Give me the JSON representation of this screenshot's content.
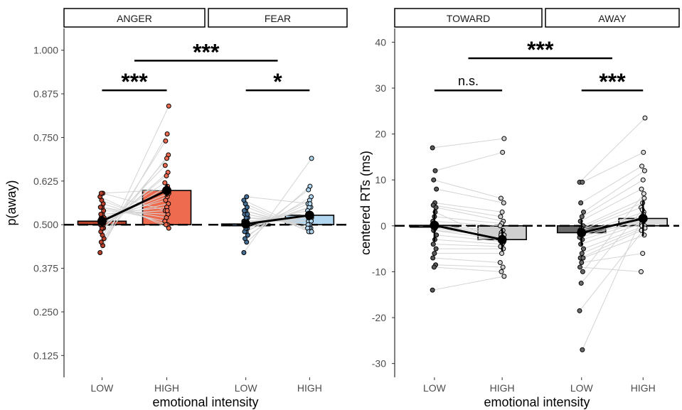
{
  "chart_data": [
    {
      "type": "bar",
      "panel": "left",
      "ylabel": "p(away)",
      "xlabel": "emotional intensity",
      "ylim": [
        0.0625,
        1.0625
      ],
      "yticks": [
        "0.125",
        "0.250",
        "0.375",
        "0.500",
        "0.625",
        "0.750",
        "0.875",
        "1.000"
      ],
      "baseline": 0.5,
      "facets": [
        {
          "label": "ANGER",
          "categories": [
            "LOW",
            "HIGH"
          ],
          "values": [
            0.51,
            0.598
          ],
          "errors": [
            0.015,
            0.018
          ],
          "colors": [
            "#b8422c",
            "#ee6b4f"
          ],
          "points": [
            [
              0.42,
              0.44,
              0.45,
              0.46,
              0.47,
              0.48,
              0.49,
              0.49,
              0.5,
              0.5,
              0.5,
              0.51,
              0.51,
              0.52,
              0.52,
              0.53,
              0.53,
              0.54,
              0.55,
              0.55,
              0.56,
              0.57,
              0.58,
              0.59,
              0.59
            ],
            [
              0.84,
              0.76,
              0.74,
              0.7,
              0.69,
              0.67,
              0.65,
              0.64,
              0.62,
              0.61,
              0.6,
              0.59,
              0.58,
              0.57,
              0.56,
              0.55,
              0.54,
              0.53,
              0.52,
              0.51,
              0.5,
              0.5,
              0.49,
              0.54,
              0.6
            ]
          ]
        },
        {
          "label": "FEAR",
          "categories": [
            "LOW",
            "HIGH"
          ],
          "values": [
            0.502,
            0.527
          ],
          "errors": [
            0.012,
            0.012
          ],
          "colors": [
            "#466f96",
            "#b1d6f0"
          ],
          "points": [
            [
              0.42,
              0.45,
              0.46,
              0.47,
              0.48,
              0.48,
              0.49,
              0.49,
              0.5,
              0.5,
              0.5,
              0.51,
              0.51,
              0.51,
              0.52,
              0.52,
              0.53,
              0.53,
              0.54,
              0.54,
              0.55,
              0.56,
              0.57,
              0.58,
              0.5
            ],
            [
              0.69,
              0.61,
              0.6,
              0.58,
              0.57,
              0.56,
              0.55,
              0.55,
              0.54,
              0.53,
              0.53,
              0.52,
              0.52,
              0.51,
              0.51,
              0.5,
              0.5,
              0.49,
              0.49,
              0.49,
              0.48,
              0.48,
              0.48,
              0.56,
              0.52
            ]
          ]
        }
      ],
      "significance": [
        {
          "text": "***",
          "from": [
            0,
            0
          ],
          "to": [
            0,
            1
          ],
          "y": 0.885
        },
        {
          "text": "*",
          "from": [
            1,
            0
          ],
          "to": [
            1,
            1
          ],
          "y": 0.885
        },
        {
          "text": "***",
          "from": [
            0,
            0.5
          ],
          "to": [
            1,
            0.5
          ],
          "y": 0.97
        }
      ]
    },
    {
      "type": "bar",
      "panel": "right",
      "ylabel": "centered RTs (ms)",
      "xlabel": "emotional intensity",
      "ylim": [
        -33,
        43
      ],
      "yticks": [
        "-30",
        "-20",
        "-10",
        "0",
        "10",
        "20",
        "30",
        "40"
      ],
      "baseline": 0,
      "facets": [
        {
          "label": "TOWARD",
          "categories": [
            "LOW",
            "HIGH"
          ],
          "values": [
            0.1,
            -3.0
          ],
          "errors": [
            3.5,
            2.5
          ],
          "colors": [
            "#5a5a5a",
            "#cfcfcf"
          ],
          "points": [
            [
              17,
              12,
              10,
              8,
              5,
              4.5,
              4,
              2,
              1,
              0,
              0,
              0,
              -0.5,
              -1,
              -2,
              -3,
              -4,
              -5,
              -6,
              -7,
              -8.5,
              -9,
              -14,
              3,
              -1
            ],
            [
              19,
              16,
              6,
              5,
              3,
              2,
              1,
              0.5,
              0,
              -1,
              -1.5,
              -2,
              -2.5,
              -3,
              -3.5,
              -4,
              -4.5,
              -5,
              -6,
              -8,
              -9,
              -10,
              -11,
              -3.8,
              -2
            ]
          ]
        },
        {
          "label": "AWAY",
          "categories": [
            "LOW",
            "HIGH"
          ],
          "values": [
            -1.5,
            1.6
          ],
          "errors": [
            2.8,
            3.8
          ],
          "colors": [
            "#6b6b6b",
            "#dcdcdc"
          ],
          "points": [
            [
              9.5,
              9.5,
              5,
              3,
              2,
              1,
              0,
              -0.5,
              -1,
              -1.5,
              -2,
              -2.5,
              -3,
              -4,
              -5,
              -6,
              -7,
              -7,
              -8,
              -9,
              -10,
              -12.5,
              -18.5,
              -27,
              -1
            ],
            [
              23.5,
              16,
              13,
              12,
              10,
              8,
              6,
              5,
              4,
              3,
              2,
              1.5,
              1,
              0.5,
              0,
              -0.5,
              -1,
              -2,
              -6,
              -10,
              7,
              3.5,
              -0.5,
              2.5,
              0
            ]
          ]
        }
      ],
      "significance": [
        {
          "text": "n.s.",
          "from": [
            0,
            0
          ],
          "to": [
            0,
            1
          ],
          "y": 29.5
        },
        {
          "text": "***",
          "from": [
            1,
            0
          ],
          "to": [
            1,
            1
          ],
          "y": 29.5
        },
        {
          "text": "***",
          "from": [
            0,
            0.5
          ],
          "to": [
            1,
            0.5
          ],
          "y": 36.5
        }
      ]
    }
  ]
}
